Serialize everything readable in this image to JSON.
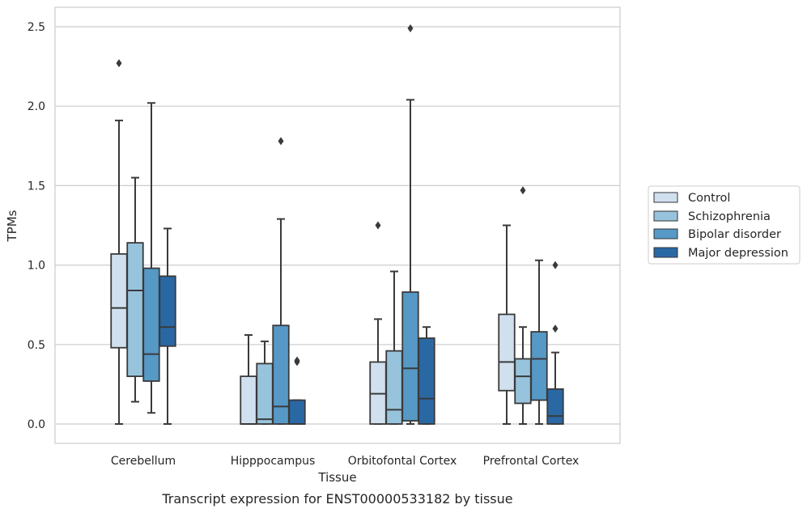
{
  "chart_data": {
    "type": "box",
    "xlabel": "Tissue",
    "ylabel": "TPMs",
    "caption": "Transcript expression for ENST00000533182 by tissue",
    "ylim": [
      -0.12,
      2.62
    ],
    "yticks": [
      "0.0",
      "0.5",
      "1.0",
      "1.5",
      "2.0",
      "2.5"
    ],
    "grid": "horizontal",
    "legend_position": "outside-right",
    "categories": [
      "Cerebellum",
      "Hipppocampus",
      "Orbitofontal Cortex",
      "Prefrontal Cortex"
    ],
    "series": [
      {
        "name": "Control",
        "color": "#d0e0ef",
        "boxes": [
          {
            "whisker_low": 0.0,
            "q1": 0.48,
            "median": 0.73,
            "q3": 1.07,
            "whisker_high": 1.91,
            "outliers": [
              2.27
            ]
          },
          {
            "whisker_low": 0.0,
            "q1": 0.0,
            "median": 0.0,
            "q3": 0.3,
            "whisker_high": 0.56,
            "outliers": []
          },
          {
            "whisker_low": 0.0,
            "q1": 0.0,
            "median": 0.19,
            "q3": 0.39,
            "whisker_high": 0.66,
            "outliers": [
              1.25
            ]
          },
          {
            "whisker_low": 0.0,
            "q1": 0.21,
            "median": 0.39,
            "q3": 0.69,
            "whisker_high": 1.25,
            "outliers": []
          }
        ]
      },
      {
        "name": "Schizophrenia",
        "color": "#98c3dc",
        "boxes": [
          {
            "whisker_low": 0.14,
            "q1": 0.3,
            "median": 0.84,
            "q3": 1.14,
            "whisker_high": 1.55,
            "outliers": []
          },
          {
            "whisker_low": 0.0,
            "q1": 0.0,
            "median": 0.03,
            "q3": 0.38,
            "whisker_high": 0.52,
            "outliers": []
          },
          {
            "whisker_low": 0.0,
            "q1": 0.0,
            "median": 0.09,
            "q3": 0.46,
            "whisker_high": 0.96,
            "outliers": []
          },
          {
            "whisker_low": 0.0,
            "q1": 0.13,
            "median": 0.3,
            "q3": 0.41,
            "whisker_high": 0.61,
            "outliers": [
              1.47
            ]
          }
        ]
      },
      {
        "name": "Bipolar disorder",
        "color": "#5699c6",
        "boxes": [
          {
            "whisker_low": 0.07,
            "q1": 0.27,
            "median": 0.44,
            "q3": 0.98,
            "whisker_high": 2.02,
            "outliers": []
          },
          {
            "whisker_low": 0.0,
            "q1": 0.0,
            "median": 0.11,
            "q3": 0.62,
            "whisker_high": 1.29,
            "outliers": [
              1.78
            ]
          },
          {
            "whisker_low": 0.0,
            "q1": 0.02,
            "median": 0.35,
            "q3": 0.83,
            "whisker_high": 2.04,
            "outliers": [
              2.49
            ]
          },
          {
            "whisker_low": 0.0,
            "q1": 0.15,
            "median": 0.41,
            "q3": 0.58,
            "whisker_high": 1.03,
            "outliers": []
          }
        ]
      },
      {
        "name": "Major depression",
        "color": "#2a68a4",
        "boxes": [
          {
            "whisker_low": 0.0,
            "q1": 0.49,
            "median": 0.61,
            "q3": 0.93,
            "whisker_high": 1.23,
            "outliers": []
          },
          {
            "whisker_low": 0.0,
            "q1": 0.0,
            "median": 0.0,
            "q3": 0.15,
            "whisker_high": 0.15,
            "outliers": [
              0.39,
              0.4
            ]
          },
          {
            "whisker_low": 0.0,
            "q1": 0.0,
            "median": 0.16,
            "q3": 0.54,
            "whisker_high": 0.61,
            "outliers": []
          },
          {
            "whisker_low": 0.0,
            "q1": 0.0,
            "median": 0.05,
            "q3": 0.22,
            "whisker_high": 0.45,
            "outliers": [
              0.6,
              1.0
            ]
          }
        ]
      }
    ]
  }
}
